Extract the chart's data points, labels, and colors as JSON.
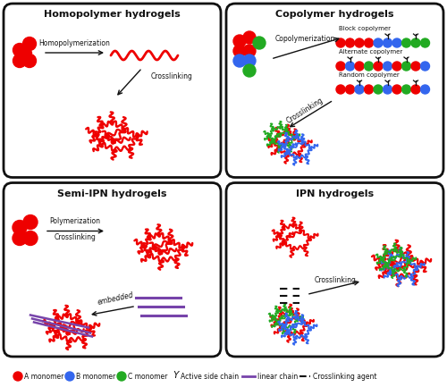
{
  "colors": {
    "red": "#EE0000",
    "blue": "#3366EE",
    "green": "#22AA22",
    "purple": "#7744AA",
    "black": "#111111",
    "background": "#FFFFFF"
  },
  "panel_titles": [
    "Homopolymer hydrogels",
    "Copolymer hydrogels",
    "Semi-IPN hydrogels",
    "IPN hydrogels"
  ],
  "figsize": [
    5.0,
    4.33
  ],
  "dpi": 100
}
